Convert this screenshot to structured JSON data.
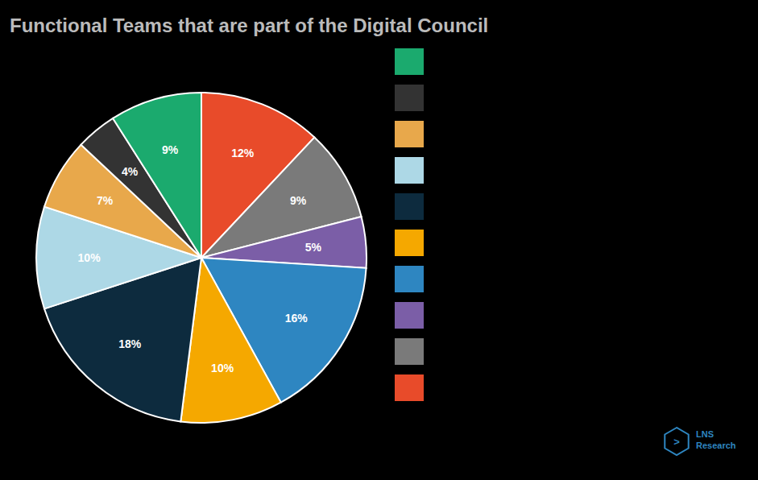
{
  "chart_data": {
    "type": "pie",
    "title": "Functional Teams that are part of the Digital Council",
    "values": [
      12,
      9,
      5,
      16,
      10,
      18,
      10,
      7,
      4,
      9
    ],
    "value_labels": [
      "12%",
      "9%",
      "5%",
      "16%",
      "10%",
      "18%",
      "10%",
      "7%",
      "4%",
      "9%"
    ],
    "data_labels": true,
    "colors": [
      "#E84B2A",
      "#7A7A7A",
      "#7B5EA7",
      "#2E86C1",
      "#F5A800",
      "#0D2B3E",
      "#ADD8E6",
      "#E8A84B",
      "#333333",
      "#1BAA6E"
    ],
    "legend": "right",
    "annotations": [
      "LNS\nResearch",
      ">"
    ]
  }
}
